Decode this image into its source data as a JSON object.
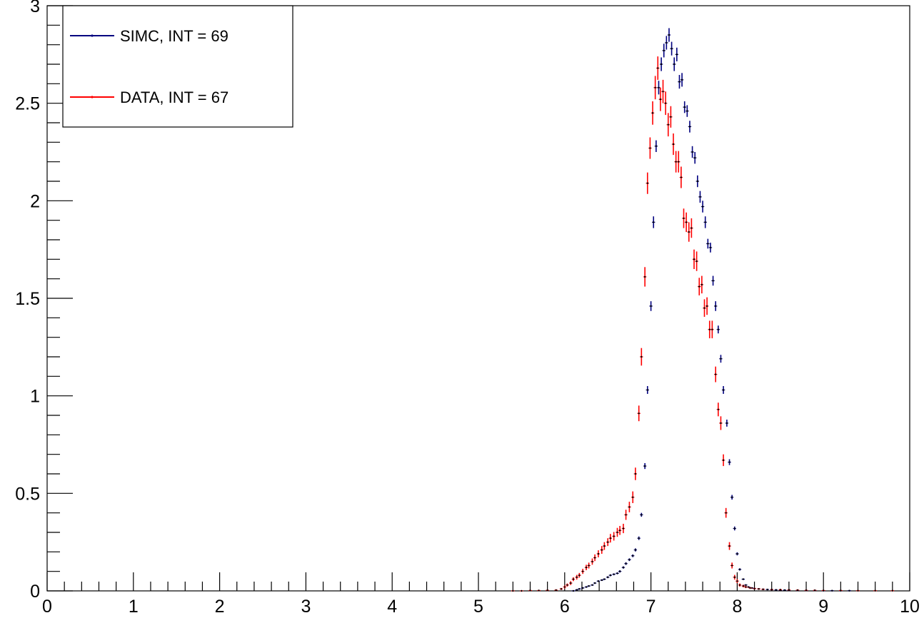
{
  "chart_data": {
    "type": "scatter",
    "title": "",
    "xlabel": "",
    "ylabel": "",
    "xlim": [
      0,
      10
    ],
    "ylim": [
      0,
      3
    ],
    "x_ticks": [
      "0",
      "1",
      "2",
      "3",
      "4",
      "5",
      "6",
      "7",
      "8",
      "9",
      "10"
    ],
    "y_ticks": [
      "0",
      "0.5",
      "1",
      "1.5",
      "2",
      "2.5",
      "3"
    ],
    "grid": false,
    "legend_position": "top-left",
    "series": [
      {
        "name": "SIMC, INT = 69",
        "color": "#000080",
        "points": [
          [
            6.1,
            0.0,
            0.0
          ],
          [
            6.14,
            0.005,
            0.002
          ],
          [
            6.17,
            0.01,
            0.002
          ],
          [
            6.21,
            0.015,
            0.003
          ],
          [
            6.25,
            0.02,
            0.003
          ],
          [
            6.28,
            0.025,
            0.003
          ],
          [
            6.32,
            0.03,
            0.003
          ],
          [
            6.35,
            0.04,
            0.004
          ],
          [
            6.39,
            0.05,
            0.004
          ],
          [
            6.43,
            0.055,
            0.004
          ],
          [
            6.46,
            0.06,
            0.004
          ],
          [
            6.5,
            0.07,
            0.005
          ],
          [
            6.53,
            0.08,
            0.005
          ],
          [
            6.57,
            0.085,
            0.005
          ],
          [
            6.61,
            0.09,
            0.005
          ],
          [
            6.64,
            0.1,
            0.006
          ],
          [
            6.68,
            0.12,
            0.006
          ],
          [
            6.71,
            0.14,
            0.007
          ],
          [
            6.75,
            0.16,
            0.007
          ],
          [
            6.79,
            0.18,
            0.007
          ],
          [
            6.82,
            0.21,
            0.008
          ],
          [
            6.86,
            0.27,
            0.009
          ],
          [
            6.89,
            0.39,
            0.01
          ],
          [
            6.93,
            0.64,
            0.015
          ],
          [
            6.96,
            1.03,
            0.02
          ],
          [
            7.0,
            1.46,
            0.025
          ],
          [
            7.03,
            1.89,
            0.03
          ],
          [
            7.06,
            2.28,
            0.03
          ],
          [
            7.09,
            2.58,
            0.035
          ],
          [
            7.12,
            2.7,
            0.035
          ],
          [
            7.15,
            2.77,
            0.035
          ],
          [
            7.18,
            2.81,
            0.035
          ],
          [
            7.21,
            2.85,
            0.035
          ],
          [
            7.24,
            2.78,
            0.035
          ],
          [
            7.27,
            2.7,
            0.035
          ],
          [
            7.3,
            2.75,
            0.035
          ],
          [
            7.33,
            2.61,
            0.035
          ],
          [
            7.36,
            2.62,
            0.035
          ],
          [
            7.39,
            2.48,
            0.03
          ],
          [
            7.42,
            2.46,
            0.03
          ],
          [
            7.45,
            2.38,
            0.03
          ],
          [
            7.48,
            2.25,
            0.03
          ],
          [
            7.51,
            2.22,
            0.03
          ],
          [
            7.54,
            2.1,
            0.03
          ],
          [
            7.57,
            2.02,
            0.03
          ],
          [
            7.6,
            1.97,
            0.03
          ],
          [
            7.63,
            1.89,
            0.03
          ],
          [
            7.66,
            1.78,
            0.025
          ],
          [
            7.69,
            1.76,
            0.025
          ],
          [
            7.72,
            1.59,
            0.025
          ],
          [
            7.75,
            1.46,
            0.025
          ],
          [
            7.78,
            1.34,
            0.02
          ],
          [
            7.81,
            1.19,
            0.02
          ],
          [
            7.84,
            1.03,
            0.02
          ],
          [
            7.88,
            0.86,
            0.018
          ],
          [
            7.91,
            0.66,
            0.015
          ],
          [
            7.94,
            0.48,
            0.012
          ],
          [
            7.97,
            0.32,
            0.01
          ],
          [
            8.0,
            0.19,
            0.008
          ],
          [
            8.03,
            0.11,
            0.006
          ],
          [
            8.07,
            0.06,
            0.004
          ],
          [
            8.1,
            0.03,
            0.003
          ],
          [
            8.13,
            0.02,
            0.003
          ],
          [
            8.17,
            0.015,
            0.002
          ],
          [
            8.2,
            0.012,
            0.002
          ],
          [
            8.25,
            0.01,
            0.002
          ],
          [
            8.3,
            0.008,
            0.002
          ],
          [
            8.35,
            0.007,
            0.002
          ],
          [
            8.4,
            0.006,
            0.002
          ],
          [
            8.45,
            0.005,
            0.002
          ],
          [
            8.5,
            0.004,
            0.002
          ],
          [
            8.55,
            0.004,
            0.002
          ],
          [
            8.6,
            0.003,
            0.001
          ],
          [
            8.7,
            0.003,
            0.001
          ],
          [
            8.8,
            0.002,
            0.001
          ],
          [
            8.9,
            0.002,
            0.001
          ],
          [
            9.0,
            0.001,
            0.001
          ],
          [
            9.1,
            0.001,
            0.001
          ],
          [
            9.2,
            0.001,
            0.001
          ],
          [
            9.3,
            0.001,
            0.001
          ]
        ]
      },
      {
        "name": "DATA, INT = 67",
        "color": "#ff0000",
        "points": [
          [
            5.4,
            0.0,
            0.003
          ],
          [
            5.5,
            0.0,
            0.003
          ],
          [
            5.6,
            0.002,
            0.003
          ],
          [
            5.7,
            0.002,
            0.003
          ],
          [
            5.8,
            0.003,
            0.003
          ],
          [
            5.9,
            0.004,
            0.004
          ],
          [
            5.96,
            0.01,
            0.005
          ],
          [
            6.0,
            0.02,
            0.008
          ],
          [
            6.03,
            0.03,
            0.008
          ],
          [
            6.07,
            0.04,
            0.01
          ],
          [
            6.1,
            0.06,
            0.01
          ],
          [
            6.14,
            0.07,
            0.012
          ],
          [
            6.17,
            0.08,
            0.012
          ],
          [
            6.21,
            0.1,
            0.013
          ],
          [
            6.25,
            0.12,
            0.014
          ],
          [
            6.28,
            0.13,
            0.015
          ],
          [
            6.32,
            0.15,
            0.016
          ],
          [
            6.35,
            0.17,
            0.017
          ],
          [
            6.39,
            0.19,
            0.018
          ],
          [
            6.43,
            0.21,
            0.02
          ],
          [
            6.46,
            0.23,
            0.02
          ],
          [
            6.5,
            0.25,
            0.02
          ],
          [
            6.53,
            0.27,
            0.022
          ],
          [
            6.57,
            0.28,
            0.022
          ],
          [
            6.61,
            0.3,
            0.023
          ],
          [
            6.64,
            0.31,
            0.023
          ],
          [
            6.68,
            0.32,
            0.024
          ],
          [
            6.71,
            0.39,
            0.026
          ],
          [
            6.75,
            0.43,
            0.027
          ],
          [
            6.79,
            0.48,
            0.03
          ],
          [
            6.82,
            0.6,
            0.032
          ],
          [
            6.86,
            0.91,
            0.04
          ],
          [
            6.89,
            1.2,
            0.045
          ],
          [
            6.93,
            1.61,
            0.05
          ],
          [
            6.96,
            2.09,
            0.055
          ],
          [
            6.99,
            2.27,
            0.055
          ],
          [
            7.02,
            2.45,
            0.06
          ],
          [
            7.05,
            2.58,
            0.06
          ],
          [
            7.08,
            2.68,
            0.06
          ],
          [
            7.11,
            2.52,
            0.06
          ],
          [
            7.14,
            2.56,
            0.06
          ],
          [
            7.17,
            2.5,
            0.06
          ],
          [
            7.2,
            2.39,
            0.06
          ],
          [
            7.23,
            2.43,
            0.055
          ],
          [
            7.26,
            2.29,
            0.055
          ],
          [
            7.29,
            2.2,
            0.055
          ],
          [
            7.32,
            2.2,
            0.055
          ],
          [
            7.35,
            2.12,
            0.055
          ],
          [
            7.38,
            1.91,
            0.05
          ],
          [
            7.41,
            1.89,
            0.05
          ],
          [
            7.44,
            1.84,
            0.05
          ],
          [
            7.47,
            1.86,
            0.05
          ],
          [
            7.5,
            1.7,
            0.05
          ],
          [
            7.53,
            1.69,
            0.05
          ],
          [
            7.56,
            1.56,
            0.045
          ],
          [
            7.59,
            1.57,
            0.045
          ],
          [
            7.62,
            1.45,
            0.045
          ],
          [
            7.65,
            1.46,
            0.045
          ],
          [
            7.68,
            1.34,
            0.045
          ],
          [
            7.71,
            1.34,
            0.045
          ],
          [
            7.75,
            1.11,
            0.04
          ],
          [
            7.78,
            0.93,
            0.035
          ],
          [
            7.81,
            0.86,
            0.035
          ],
          [
            7.84,
            0.67,
            0.03
          ],
          [
            7.87,
            0.4,
            0.025
          ],
          [
            7.91,
            0.23,
            0.02
          ],
          [
            7.94,
            0.13,
            0.015
          ],
          [
            7.97,
            0.07,
            0.012
          ],
          [
            8.0,
            0.05,
            0.01
          ],
          [
            8.03,
            0.03,
            0.008
          ],
          [
            8.07,
            0.025,
            0.007
          ],
          [
            8.1,
            0.02,
            0.006
          ],
          [
            8.15,
            0.015,
            0.005
          ],
          [
            8.2,
            0.012,
            0.005
          ],
          [
            8.25,
            0.01,
            0.004
          ],
          [
            8.3,
            0.008,
            0.004
          ],
          [
            8.4,
            0.007,
            0.004
          ],
          [
            8.5,
            0.006,
            0.004
          ],
          [
            8.6,
            0.005,
            0.004
          ],
          [
            8.7,
            0.004,
            0.003
          ],
          [
            8.8,
            0.003,
            0.003
          ],
          [
            8.9,
            0.003,
            0.003
          ],
          [
            9.0,
            0.002,
            0.003
          ],
          [
            9.2,
            0.002,
            0.003
          ],
          [
            9.4,
            0.001,
            0.003
          ],
          [
            9.6,
            0.001,
            0.003
          ],
          [
            9.8,
            0.001,
            0.003
          ]
        ]
      }
    ]
  }
}
